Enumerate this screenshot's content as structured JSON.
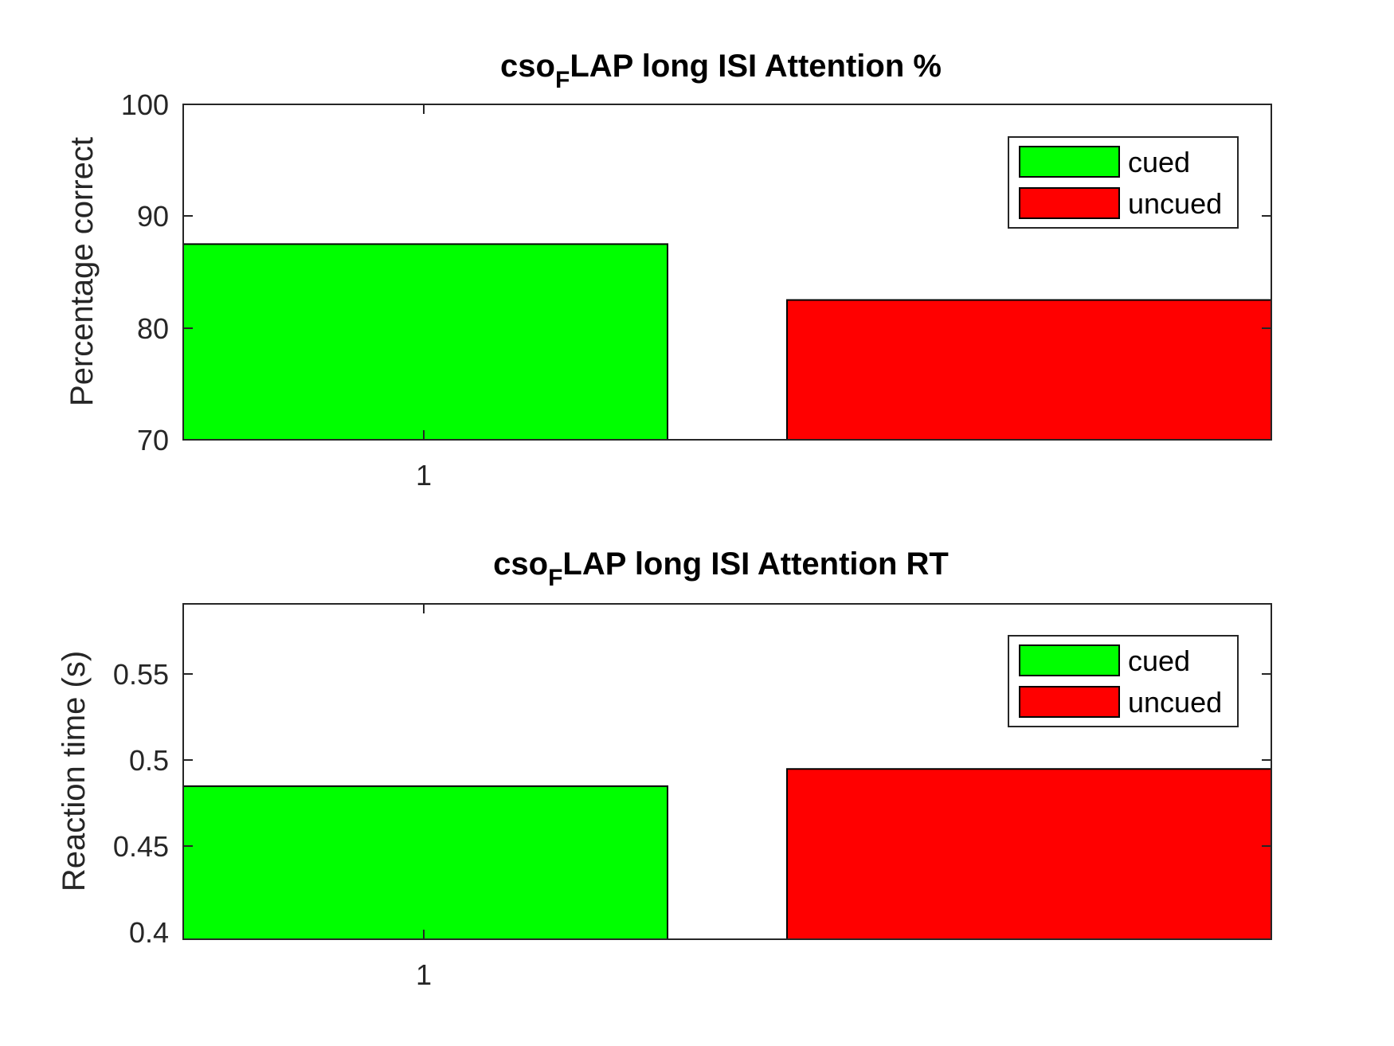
{
  "chart_data": [
    {
      "type": "bar",
      "title_main": "cso",
      "title_sub": "F",
      "title_rest": "LAP long ISI Attention %",
      "xlabel": "",
      "ylabel": "Percentage correct",
      "categories": [
        "1"
      ],
      "ylim": [
        70,
        100
      ],
      "yticks": [
        "70",
        "80",
        "90",
        "100"
      ],
      "series": [
        {
          "name": "cued",
          "color": "#00ff00",
          "values": [
            87.5
          ]
        },
        {
          "name": "uncued",
          "color": "#ff0000",
          "values": [
            82.5
          ]
        }
      ],
      "legend": "top-right",
      "grid": false
    },
    {
      "type": "bar",
      "title_main": "cso",
      "title_sub": "F",
      "title_rest": "LAP long ISI Attention RT",
      "xlabel": "",
      "ylabel": "Reaction time (s)",
      "categories": [
        "1"
      ],
      "ylim": [
        0.395,
        0.59
      ],
      "yticks": [
        "0.4",
        "0.45",
        "0.5",
        "0.55"
      ],
      "series": [
        {
          "name": "cued",
          "color": "#00ff00",
          "values": [
            0.484
          ]
        },
        {
          "name": "uncued",
          "color": "#ff0000",
          "values": [
            0.494
          ]
        }
      ],
      "legend": "top-right",
      "grid": false
    }
  ]
}
